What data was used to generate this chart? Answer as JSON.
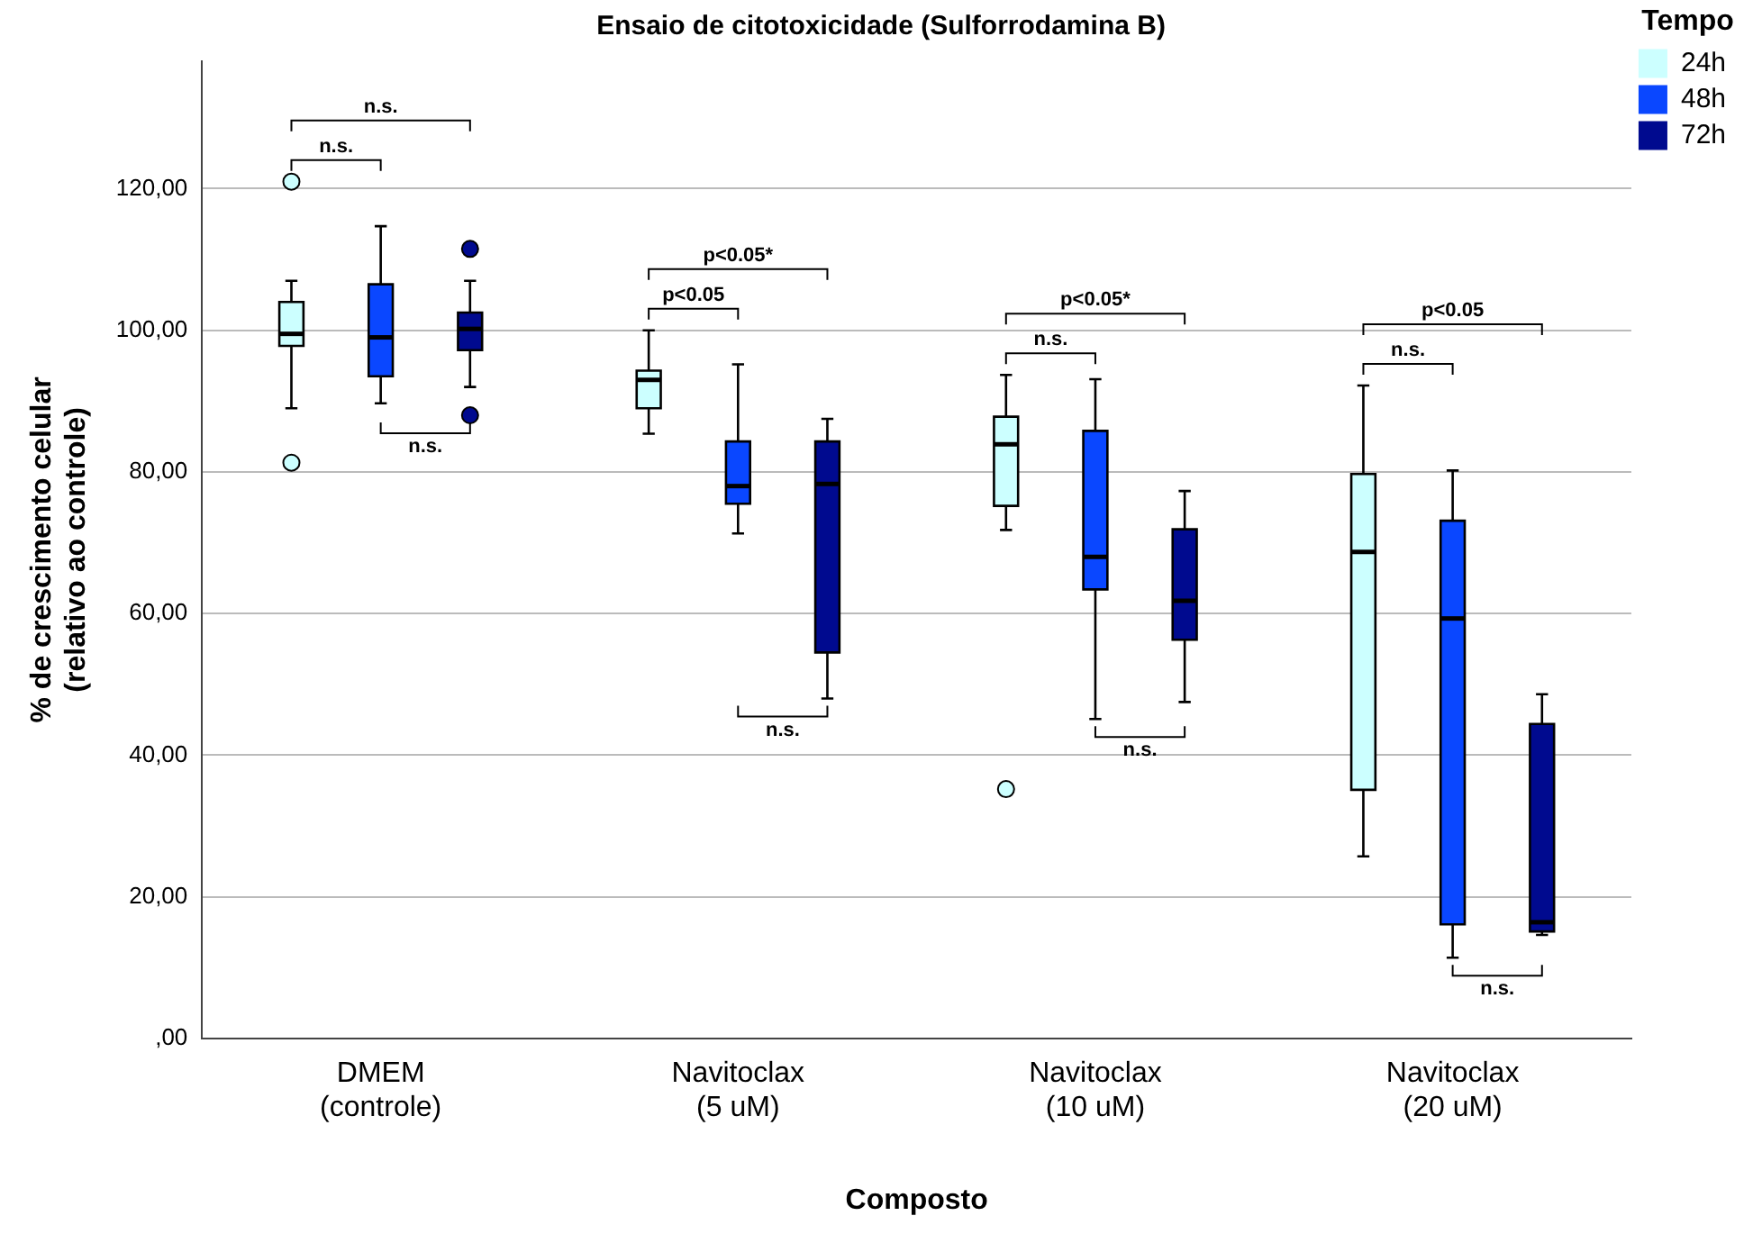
{
  "chart_data": {
    "type": "box",
    "title": "Ensaio de citotoxicidade (Sulforrodamina B)",
    "xlabel": "Composto",
    "ylabel": "% de crescimento celular\n(relativo ao controle)",
    "legend_title": "Tempo",
    "legend": "top right",
    "grid": "y",
    "categories": [
      "DMEM (controle)",
      "Navitoclax (5 uM)",
      "Navitoclax (10 uM)",
      "Navitoclax (20 uM)"
    ],
    "ylim": [
      0,
      138
    ],
    "yticks": [
      {
        "value": 0,
        "label": ",00"
      },
      {
        "value": 20,
        "label": "20,00"
      },
      {
        "value": 40,
        "label": "40,00"
      },
      {
        "value": 60,
        "label": "60,00"
      },
      {
        "value": 80,
        "label": "80,00"
      },
      {
        "value": 100,
        "label": "100,00"
      },
      {
        "value": 120,
        "label": "120,00"
      }
    ],
    "series": [
      {
        "name": "24h",
        "color": "#ccffff",
        "boxes": [
          {
            "low": 89,
            "q1": 97.8,
            "median": 99.5,
            "q3": 104,
            "high": 107,
            "outliers": [
              121,
              81.3
            ]
          },
          {
            "low": 85.4,
            "q1": 89,
            "median": 93,
            "q3": 94.3,
            "high": 100
          },
          {
            "low": 71.8,
            "q1": 75.2,
            "median": 83.9,
            "q3": 87.8,
            "high": 93.7,
            "outliers": [
              35.2
            ]
          },
          {
            "low": 25.7,
            "q1": 35.1,
            "median": 68.7,
            "q3": 79.7,
            "high": 92.2
          }
        ]
      },
      {
        "name": "48h",
        "color": "#0a47ff",
        "boxes": [
          {
            "low": 89.7,
            "q1": 93.5,
            "median": 99,
            "q3": 106.5,
            "high": 114.7
          },
          {
            "low": 71.3,
            "q1": 75.5,
            "median": 78,
            "q3": 84.3,
            "high": 95.2
          },
          {
            "low": 45.1,
            "q1": 63.4,
            "median": 68,
            "q3": 85.8,
            "high": 93.1
          },
          {
            "low": 11.4,
            "q1": 16.1,
            "median": 59.3,
            "q3": 73.1,
            "high": 80.2
          }
        ]
      },
      {
        "name": "72h",
        "color": "#000a8f",
        "boxes": [
          {
            "low": 92,
            "q1": 97.2,
            "median": 100.2,
            "q3": 102.5,
            "high": 107,
            "outliers": [
              111.5,
              88
            ]
          },
          {
            "low": 48,
            "q1": 54.5,
            "median": 78.3,
            "q3": 84.3,
            "high": 87.5
          },
          {
            "low": 47.5,
            "q1": 56.3,
            "median": 61.8,
            "q3": 71.9,
            "high": 77.3
          },
          {
            "low": 14.6,
            "q1": 15.1,
            "median": 16.4,
            "q3": 44.4,
            "high": 48.6
          }
        ]
      }
    ],
    "annotations": [
      "n.s.",
      "n.s.",
      "n.s.",
      "p<0.05*",
      "p<0.05",
      "n.s.",
      "p<0.05*",
      "n.s.",
      "n.s.",
      "p<0.05",
      "n.s.",
      "n.s."
    ]
  }
}
